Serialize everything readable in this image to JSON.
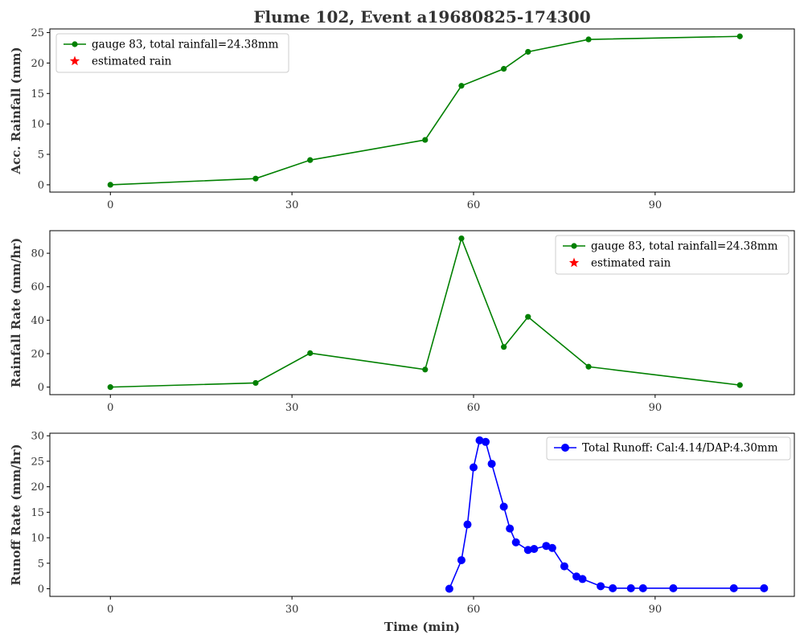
{
  "title": "Flume 102, Event a19680825-174300",
  "x_label": "Time (min)",
  "colors": {
    "rain": "#008000",
    "runoff": "#0000ff",
    "estimated": "#ff0000",
    "text": "#333333"
  },
  "chart_data": [
    {
      "type": "line",
      "ylabel": "Acc. Rainfall (mm)",
      "xlim": [
        -10,
        113
      ],
      "ylim": [
        -1.2,
        25.6
      ],
      "xticks": [
        0,
        30,
        60,
        90
      ],
      "yticks": [
        0,
        5,
        10,
        15,
        20,
        25
      ],
      "legend_position": "upper left",
      "series": [
        {
          "name": "gauge 83, total rainfall=24.38mm",
          "marker": "circle",
          "color": "#008000",
          "x": [
            0,
            24,
            33,
            52,
            58,
            65,
            69,
            79,
            104
          ],
          "y": [
            0,
            1.02,
            4.06,
            7.37,
            16.26,
            19.05,
            21.84,
            23.88,
            24.38
          ]
        },
        {
          "name": "estimated rain",
          "marker": "star",
          "color": "#ff0000",
          "x": [],
          "y": []
        }
      ]
    },
    {
      "type": "line",
      "ylabel": "Rainfall Rate (mm/hr)",
      "xlim": [
        -10,
        113
      ],
      "ylim": [
        -4.5,
        93.5
      ],
      "xticks": [
        0,
        30,
        60,
        90
      ],
      "yticks": [
        0,
        20,
        40,
        60,
        80
      ],
      "legend_position": "upper right",
      "series": [
        {
          "name": "gauge 83, total rainfall=24.38mm",
          "marker": "circle",
          "color": "#008000",
          "x": [
            0,
            24,
            33,
            52,
            58,
            65,
            69,
            79,
            104
          ],
          "y": [
            0,
            2.5,
            20.3,
            10.5,
            88.9,
            24,
            42,
            12.2,
            1.2
          ]
        },
        {
          "name": "estimated rain",
          "marker": "star",
          "color": "#ff0000",
          "x": [],
          "y": []
        }
      ]
    },
    {
      "type": "line",
      "ylabel": "Runoff Rate (mm/hr)",
      "xlabel": "Time (min)",
      "xlim": [
        -10,
        113
      ],
      "ylim": [
        -1.5,
        30.5
      ],
      "xticks": [
        0,
        30,
        60,
        90
      ],
      "yticks": [
        0,
        5,
        10,
        15,
        20,
        25,
        30
      ],
      "legend_position": "upper right",
      "series": [
        {
          "name": "Total Runoff: Cal:4.14/DAP:4.30mm",
          "marker": "circle",
          "color": "#0000ff",
          "x": [
            56,
            58,
            59,
            60,
            61,
            62,
            63,
            65,
            66,
            67,
            69,
            70,
            72,
            73,
            75,
            77,
            78,
            81,
            83,
            86,
            88,
            93,
            103,
            108
          ],
          "y": [
            0,
            5.6,
            12.6,
            23.8,
            29.1,
            28.8,
            24.5,
            16.1,
            11.8,
            9.1,
            7.6,
            7.8,
            8.4,
            8.0,
            4.4,
            2.4,
            1.9,
            0.5,
            0.1,
            0.1,
            0.1,
            0.1,
            0.1,
            0.1
          ]
        }
      ]
    }
  ]
}
